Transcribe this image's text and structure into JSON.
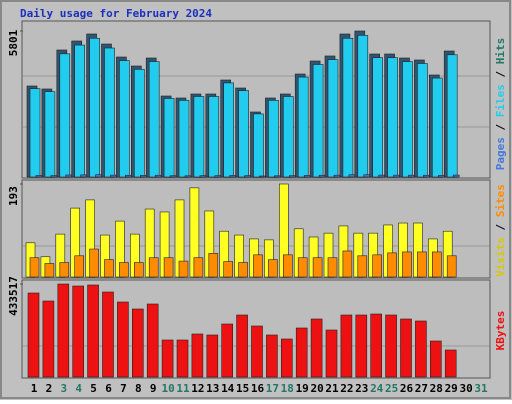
{
  "chart_data": [
    {
      "type": "bar",
      "title": "Daily usage for February 2024",
      "legend_separator": "/",
      "ylim": [
        0,
        5801
      ],
      "yticks": [
        5801
      ],
      "series": [
        {
          "name": "Pages",
          "color": "#4477DD",
          "values": [
            60,
            55,
            80,
            85,
            90,
            75,
            70,
            65,
            70,
            50,
            48,
            52,
            52,
            60,
            55,
            40,
            48,
            52,
            62,
            70,
            72,
            88,
            90,
            75,
            75,
            72,
            70,
            62,
            78,
            null,
            null
          ]
        },
        {
          "name": "Files",
          "color": "#22CCEE",
          "values": [
            3508,
            3392,
            4895,
            5242,
            5512,
            5125,
            4625,
            4278,
            4586,
            3121,
            3045,
            3199,
            3199,
            3738,
            3430,
            2506,
            3045,
            3199,
            3969,
            4471,
            4664,
            5512,
            5627,
            4740,
            4740,
            4586,
            4509,
            3931,
            4856,
            null,
            null
          ]
        },
        {
          "name": "Hits",
          "color": "#2F5573",
          "values": [
            3616,
            3497,
            5046,
            5404,
            5682,
            5284,
            4768,
            4410,
            4728,
            3218,
            3139,
            3298,
            3298,
            3854,
            3536,
            2583,
            3139,
            3298,
            4092,
            4609,
            4808,
            5682,
            5801,
            4887,
            4887,
            4728,
            4649,
            4053,
            5006,
            null,
            null
          ]
        }
      ]
    },
    {
      "type": "bar",
      "legend_separator": "/",
      "ylim": [
        0,
        193
      ],
      "yticks": [
        193
      ],
      "series": [
        {
          "name": "Visits",
          "color": "#FFFF22",
          "values": [
            71,
            42,
            89,
            143,
            160,
            87,
            116,
            89,
            141,
            135,
            160,
            185,
            137,
            95,
            87,
            79,
            77,
            193,
            100,
            83,
            91,
            106,
            91,
            91,
            108,
            112,
            112,
            79,
            95,
            null,
            null
          ]
        },
        {
          "name": "Sites",
          "color": "#FF8C00",
          "values": [
            40,
            28,
            30,
            44,
            58,
            36,
            30,
            30,
            40,
            40,
            33,
            40,
            49,
            32,
            30,
            46,
            36,
            46,
            40,
            40,
            40,
            54,
            44,
            46,
            50,
            52,
            52,
            52,
            44,
            null,
            null
          ]
        }
      ]
    },
    {
      "type": "bar",
      "ylim": [
        0,
        433517
      ],
      "yticks": [
        433517
      ],
      "categories": [
        "1",
        "2",
        "3",
        "4",
        "5",
        "6",
        "7",
        "8",
        "9",
        "10",
        "11",
        "12",
        "13",
        "14",
        "15",
        "16",
        "17",
        "18",
        "19",
        "20",
        "21",
        "22",
        "23",
        "24",
        "25",
        "26",
        "27",
        "28",
        "29",
        "30",
        "31"
      ],
      "weekend": [
        "3",
        "4",
        "10",
        "11",
        "17",
        "18",
        "24",
        "25",
        "31"
      ],
      "weekend_color": "#227766",
      "series": [
        {
          "name": "KBytes",
          "color": "#EE1111",
          "values": [
            391567,
            354277,
            433517,
            424194,
            428856,
            396229,
            349614,
            316983,
            340291,
            172476,
            172476,
            200446,
            195784,
            247061,
            289015,
            237738,
            195784,
            177138,
            228414,
            270369,
            219092,
            289015,
            289015,
            293676,
            289015,
            270369,
            261046,
            167814,
            125860,
            null,
            null
          ]
        }
      ]
    }
  ]
}
